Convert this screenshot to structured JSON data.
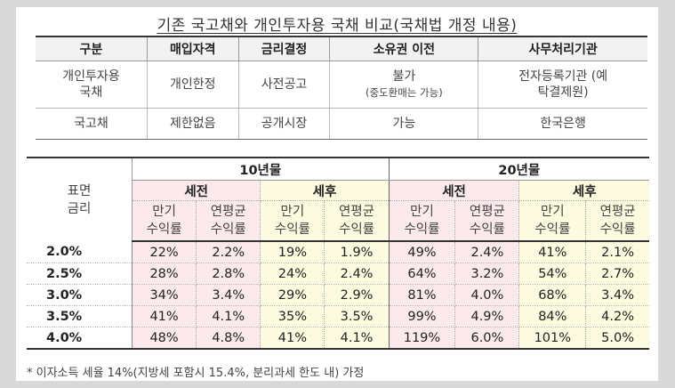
{
  "title": "기존 국고채와 개인투자용 국채 비교(국채법 개정 내용)",
  "comparison": {
    "headers": [
      "구분",
      "매입자격",
      "금리결정",
      "소유권 이전",
      "사무처리기관"
    ],
    "rows": [
      {
        "type_l1": "개인투자용",
        "type_l2": "국채",
        "eligibility": "개인한정",
        "rate": "사전공고",
        "transfer_l1": "불가",
        "transfer_l2": "(중도환매는 가능)",
        "agency_l1": "전자등록기관 (예",
        "agency_l2": "탁결제원)"
      },
      {
        "type_l1": "국고채",
        "type_l2": "",
        "eligibility": "제한없음",
        "rate": "공개시장",
        "transfer_l1": "가능",
        "transfer_l2": "",
        "agency_l1": "한국은행",
        "agency_l2": ""
      }
    ]
  },
  "rates_table": {
    "label_l1": "표면",
    "label_l2": "금리",
    "term_10": "10년물",
    "term_20": "20년물",
    "pre_tax": "세전",
    "post_tax": "세후",
    "col_a_l1": "만기",
    "col_a_l2": "수익률",
    "col_b_l1": "연평균",
    "col_b_l2": "수익률",
    "rows": [
      {
        "rate": "2.0%",
        "v": [
          "22%",
          "2.2%",
          "19%",
          "1.9%",
          "49%",
          "2.4%",
          "41%",
          "2.1%"
        ]
      },
      {
        "rate": "2.5%",
        "v": [
          "28%",
          "2.8%",
          "24%",
          "2.4%",
          "64%",
          "3.2%",
          "54%",
          "2.7%"
        ]
      },
      {
        "rate": "3.0%",
        "v": [
          "34%",
          "3.4%",
          "29%",
          "2.9%",
          "81%",
          "4.0%",
          "68%",
          "3.4%"
        ]
      },
      {
        "rate": "3.5%",
        "v": [
          "41%",
          "4.1%",
          "35%",
          "3.5%",
          "99%",
          "4.9%",
          "84%",
          "4.2%"
        ]
      },
      {
        "rate": "4.0%",
        "v": [
          "48%",
          "4.8%",
          "41%",
          "4.1%",
          "119%",
          "6.0%",
          "101%",
          "5.0%"
        ]
      }
    ]
  },
  "footnote": "* 이자소득 세율 14%(지방세 포함시 15.4%, 분리과세 한도 내) 가정",
  "colors": {
    "pre_tax_bg": "#fbe9ec",
    "post_tax_bg": "#fcfbdf"
  }
}
